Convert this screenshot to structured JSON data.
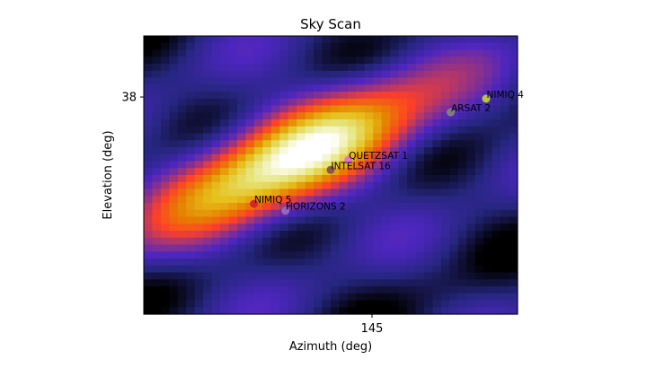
{
  "chart_data": {
    "type": "heatmap",
    "title": "Sky Scan",
    "xlabel": "Azimuth (deg)",
    "ylabel": "Elevation (deg)",
    "xlim": [
      139.2,
      148.7
    ],
    "ylim": [
      31.6,
      39.8
    ],
    "xticks": [
      145
    ],
    "yticks": [
      38
    ],
    "grid": false,
    "legend": "none",
    "colormap": "CMRmap",
    "field_cells": [
      44,
      40
    ],
    "field": {
      "base": 0.11,
      "blob": {
        "az": 143.0,
        "el": 36.2,
        "major_width": 2.6,
        "minor_width": 0.95,
        "angle_deg": 29,
        "peak": 0.82
      },
      "bands": [
        {
          "angle_deg": 30,
          "amplitude": 0.09,
          "period_deg": 3.4,
          "phase": 0.4
        },
        {
          "angle_deg": -55,
          "amplitude": 0.06,
          "period_deg": 4.2,
          "phase": 1.3
        }
      ]
    },
    "satellites": [
      {
        "name": "NIMIQ 4",
        "az": 147.9,
        "el": 37.95,
        "color": "#b8c43b"
      },
      {
        "name": "ARSAT 2",
        "az": 147.0,
        "el": 37.55,
        "color": "#7f7f7f"
      },
      {
        "name": "QUETZSAT 1",
        "az": 144.4,
        "el": 36.15,
        "color": "#e377c2"
      },
      {
        "name": "INTELSAT 16",
        "az": 143.95,
        "el": 35.85,
        "color": "#8c564b"
      },
      {
        "name": "NIMIQ 5",
        "az": 142.0,
        "el": 34.85,
        "color": "#d62728"
      },
      {
        "name": "HORIZONS 2",
        "az": 142.8,
        "el": 34.65,
        "color": "#9467bd"
      }
    ]
  }
}
